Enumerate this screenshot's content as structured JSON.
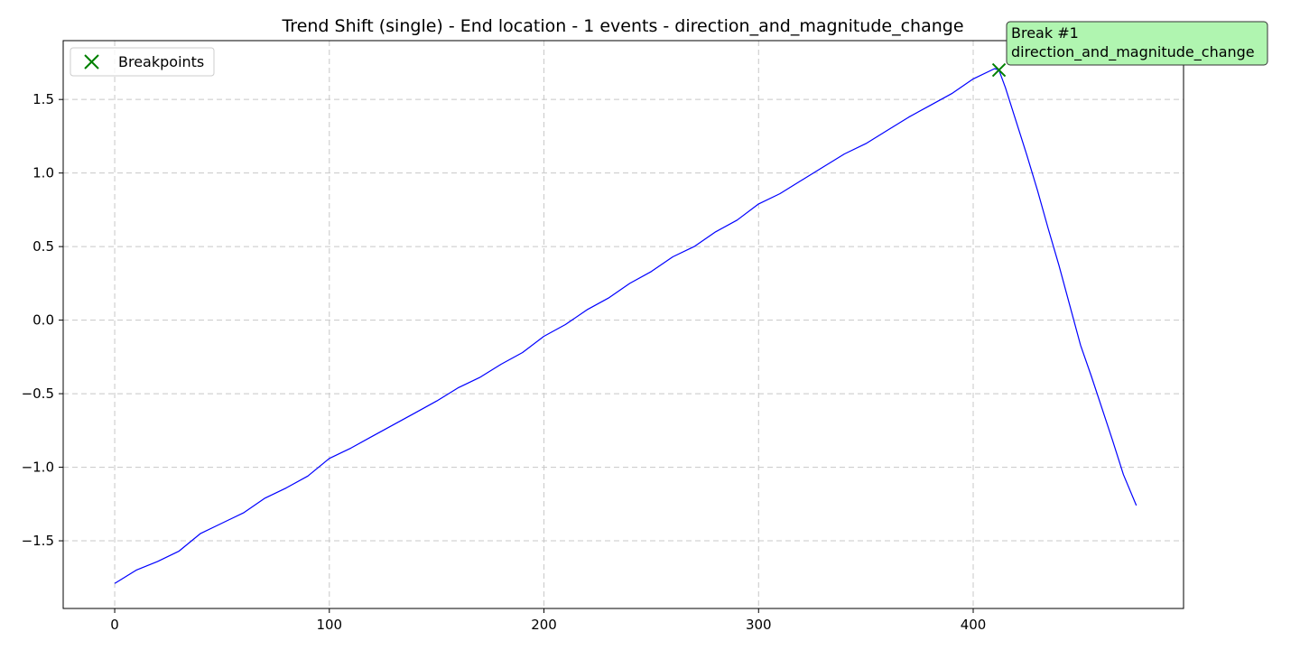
{
  "chart_data": {
    "type": "line",
    "title": "Trend Shift (single) - End location - 1 events - direction_and_magnitude_change",
    "xlabel": "",
    "ylabel": "",
    "xlim": [
      -24,
      498
    ],
    "ylim": [
      -1.96,
      1.9
    ],
    "x_ticks": [
      0,
      100,
      200,
      300,
      400
    ],
    "y_ticks": [
      -1.5,
      -1.0,
      -0.5,
      0.0,
      0.5,
      1.0,
      1.5
    ],
    "x_tick_labels": [
      "0",
      "100",
      "200",
      "300",
      "400"
    ],
    "y_tick_labels": [
      "−1.5",
      "−1.0",
      "−0.5",
      "0.0",
      "0.5",
      "1.0",
      "1.5"
    ],
    "grid": true,
    "legend_position": "top-left",
    "series": [
      {
        "color": "#0000ff",
        "x": [
          0,
          10,
          20,
          30,
          40,
          50,
          60,
          70,
          80,
          90,
          100,
          110,
          120,
          130,
          140,
          150,
          160,
          170,
          180,
          190,
          200,
          210,
          220,
          230,
          240,
          250,
          260,
          270,
          280,
          290,
          300,
          310,
          320,
          330,
          340,
          350,
          360,
          370,
          380,
          390,
          400,
          410,
          412,
          415,
          420,
          425,
          430,
          435,
          440,
          445,
          450,
          455,
          460,
          465,
          470,
          476
        ],
        "y": [
          -1.79,
          -1.7,
          -1.64,
          -1.57,
          -1.45,
          -1.38,
          -1.31,
          -1.21,
          -1.14,
          -1.06,
          -0.94,
          -0.87,
          -0.79,
          -0.71,
          -0.63,
          -0.55,
          -0.46,
          -0.39,
          -0.3,
          -0.22,
          -0.11,
          -0.03,
          0.07,
          0.15,
          0.25,
          0.33,
          0.43,
          0.5,
          0.6,
          0.68,
          0.79,
          0.86,
          0.95,
          1.04,
          1.13,
          1.2,
          1.29,
          1.38,
          1.46,
          1.54,
          1.64,
          1.71,
          1.7,
          1.58,
          1.35,
          1.12,
          0.88,
          0.62,
          0.37,
          0.1,
          -0.17,
          -0.38,
          -0.6,
          -0.82,
          -1.05,
          -1.26
        ]
      },
      {
        "name": "Breakpoints",
        "type": "scatter",
        "marker": "x",
        "color": "#008000",
        "x": [
          412
        ],
        "y": [
          1.7
        ]
      }
    ],
    "annotations": [
      {
        "line1": "Break #1",
        "line2": "direction_and_magnitude_change",
        "background": "#b0f5b0"
      }
    ]
  }
}
